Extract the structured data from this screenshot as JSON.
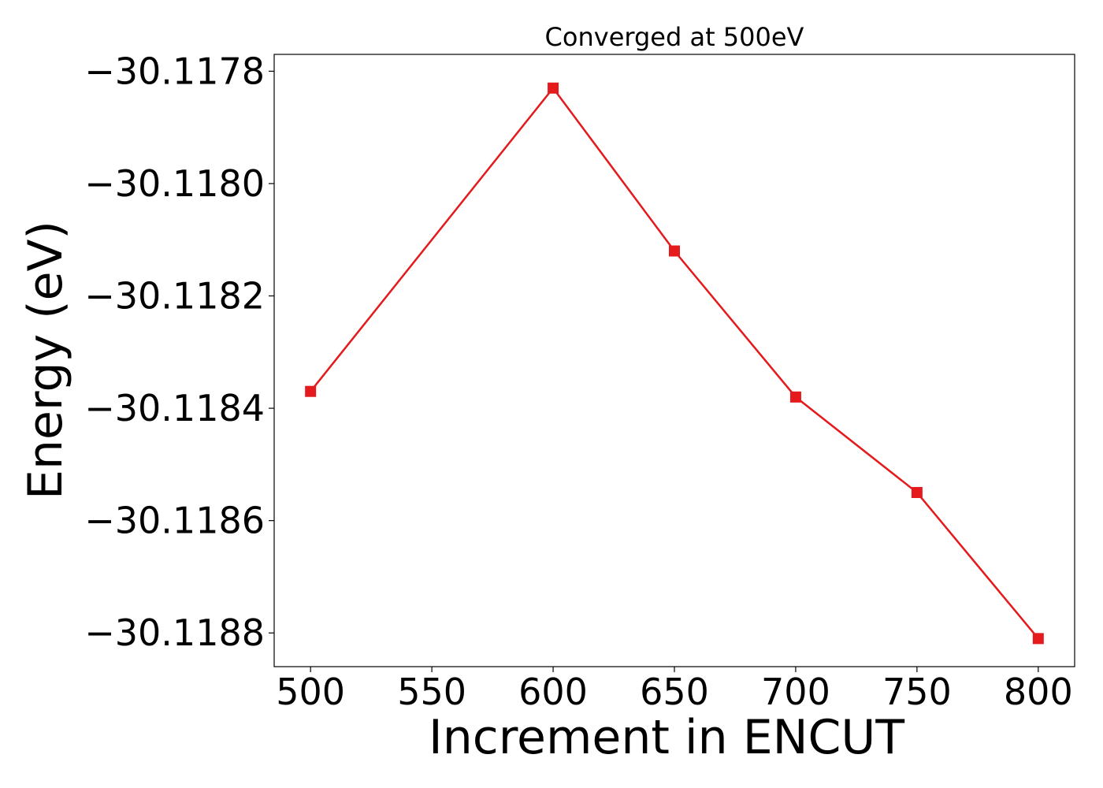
{
  "chart_data": {
    "type": "line",
    "title": "Converged at 500eV",
    "xlabel": "Increment in ENCUT",
    "ylabel": "Energy (eV)",
    "x": [
      500,
      600,
      650,
      700,
      750,
      800
    ],
    "series": [
      {
        "values": [
          -30.11837,
          -30.11783,
          -30.11812,
          -30.11838,
          -30.11855,
          -30.11881
        ],
        "color": "#e41a1c",
        "marker": "square"
      }
    ],
    "xticks": [
      500,
      550,
      600,
      650,
      700,
      750,
      800
    ],
    "xtick_labels": [
      "500",
      "550",
      "600",
      "650",
      "700",
      "750",
      "800"
    ],
    "yticks": [
      -30.1188,
      -30.1186,
      -30.1184,
      -30.1182,
      -30.118,
      -30.1178
    ],
    "ytick_labels": [
      "−30.1188",
      "−30.1186",
      "−30.1184",
      "−30.1182",
      "−30.1180",
      "−30.1178"
    ],
    "xlim": [
      485,
      815
    ],
    "ylim": [
      -30.11886,
      -30.11777
    ],
    "grid": false,
    "legend": "none"
  }
}
